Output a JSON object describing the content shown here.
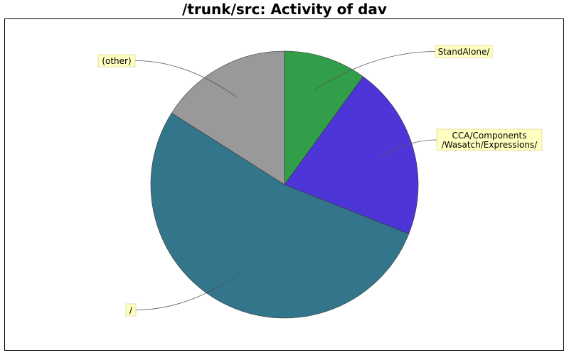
{
  "title": "/trunk/src: Activity of dav",
  "chart_data": {
    "type": "pie",
    "title": "/trunk/src: Activity of dav",
    "start_angle_deg": 90,
    "direction": "clockwise",
    "slices": [
      {
        "label": "StandAlone/",
        "label_lines": [
          "StandAlone/"
        ],
        "value": 10,
        "color": "#339e49"
      },
      {
        "label": "CCA/Components/Wasatch/Expressions/",
        "label_lines": [
          "CCA/Components",
          "/Wasatch/Expressions/"
        ],
        "value": 21,
        "color": "#4e35d8"
      },
      {
        "label": "/",
        "label_lines": [
          "/"
        ],
        "value": 53,
        "color": "#33758b"
      },
      {
        "label": "(other)",
        "label_lines": [
          "(other)"
        ],
        "value": 16,
        "color": "#999999"
      }
    ]
  }
}
